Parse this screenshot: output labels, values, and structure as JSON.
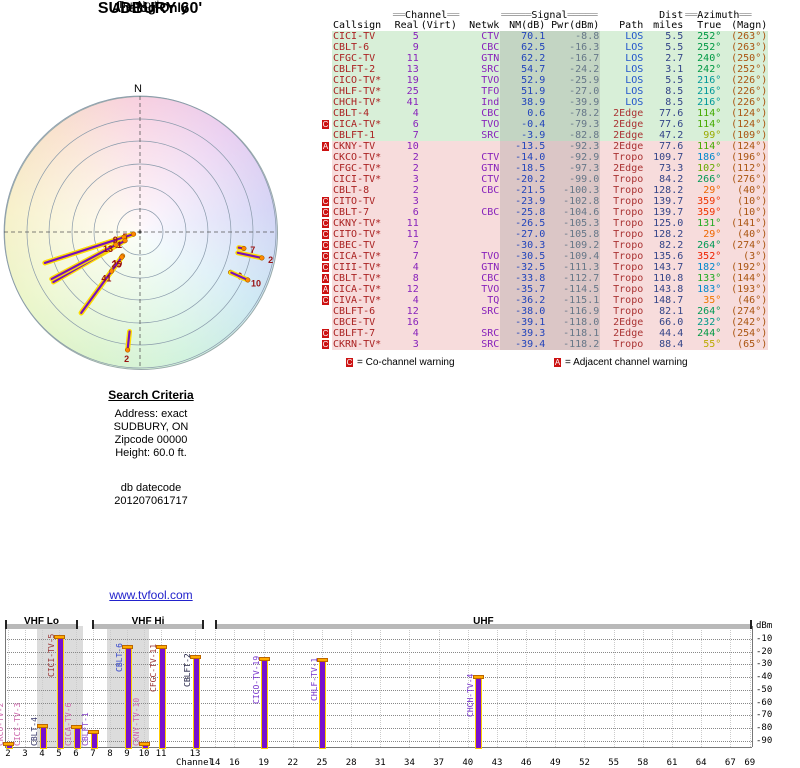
{
  "radar": {
    "title": "SUDBURY 60'",
    "subtitle": "Analog Only",
    "north_label": "TrueNorth",
    "compass_label": "N"
  },
  "table": {
    "group_headers": {
      "channel": {
        "pre": "══",
        "label": "Channel",
        "post": "══"
      },
      "signal": {
        "pre": "═════",
        "label": "Signal",
        "post": "═════"
      },
      "dist": {
        "label": "Dist"
      },
      "azimuth": {
        "pre": "══",
        "label": "Azimuth",
        "post": "══"
      }
    },
    "columns": [
      "Callsign",
      "Real",
      "(Virt)",
      "Netwk",
      "NM(dB)",
      "Pwr(dBm)",
      "Path",
      "miles",
      "True",
      "(Magn)"
    ],
    "rows": [
      {
        "warn": "",
        "callsign": "CICI-TV",
        "real": "5",
        "virt": "",
        "netwk": "CTV",
        "nm": "70.1",
        "pwr": "-8.8",
        "path": "LOS",
        "miles": "5.5",
        "az_true": "252°",
        "az_magn": "(263°)",
        "tier": "green",
        "az_color": "#009944"
      },
      {
        "warn": "",
        "callsign": "CBLT-6",
        "real": "9",
        "virt": "",
        "netwk": "CBC",
        "nm": "62.5",
        "pwr": "-16.3",
        "path": "LOS",
        "miles": "5.5",
        "az_true": "252°",
        "az_magn": "(263°)",
        "tier": "green",
        "az_color": "#009944"
      },
      {
        "warn": "",
        "callsign": "CFGC-TV",
        "real": "11",
        "virt": "",
        "netwk": "GTN",
        "nm": "62.2",
        "pwr": "-16.7",
        "path": "LOS",
        "miles": "2.7",
        "az_true": "240°",
        "az_magn": "(250°)",
        "tier": "green",
        "az_color": "#009944"
      },
      {
        "warn": "",
        "callsign": "CBLFT-2",
        "real": "13",
        "virt": "",
        "netwk": "SRC",
        "nm": "54.7",
        "pwr": "-24.2",
        "path": "LOS",
        "miles": "3.1",
        "az_true": "242°",
        "az_magn": "(252°)",
        "tier": "green",
        "az_color": "#009944"
      },
      {
        "warn": "",
        "callsign": "CICO-TV*",
        "real": "19",
        "virt": "",
        "netwk": "TVO",
        "nm": "52.9",
        "pwr": "-25.9",
        "path": "LOS",
        "miles": "5.5",
        "az_true": "216°",
        "az_magn": "(226°)",
        "tier": "green",
        "az_color": "#009999"
      },
      {
        "warn": "",
        "callsign": "CHLF-TV*",
        "real": "25",
        "virt": "",
        "netwk": "TFO",
        "nm": "51.9",
        "pwr": "-27.0",
        "path": "LOS",
        "miles": "8.5",
        "az_true": "216°",
        "az_magn": "(226°)",
        "tier": "green",
        "az_color": "#009999"
      },
      {
        "warn": "",
        "callsign": "CHCH-TV*",
        "real": "41",
        "virt": "",
        "netwk": "Ind",
        "nm": "38.9",
        "pwr": "-39.9",
        "path": "LOS",
        "miles": "8.5",
        "az_true": "216°",
        "az_magn": "(226°)",
        "tier": "green",
        "az_color": "#009999"
      },
      {
        "warn": "",
        "callsign": "CBLT-4",
        "real": "4",
        "virt": "",
        "netwk": "CBC",
        "nm": "0.6",
        "pwr": "-78.2",
        "path": "2Edge",
        "miles": "77.6",
        "az_true": "114°",
        "az_magn": "(124°)",
        "tier": "green",
        "az_color": "#44aa00"
      },
      {
        "warn": "C",
        "callsign": "CICA-TV*",
        "real": "6",
        "virt": "",
        "netwk": "TVO",
        "nm": "-0.4",
        "pwr": "-79.3",
        "path": "2Edge",
        "miles": "77.6",
        "az_true": "114°",
        "az_magn": "(124°)",
        "tier": "green",
        "az_color": "#44aa00"
      },
      {
        "warn": "",
        "callsign": "CBLFT-1",
        "real": "7",
        "virt": "",
        "netwk": "SRC",
        "nm": "-3.9",
        "pwr": "-82.8",
        "path": "2Edge",
        "miles": "47.2",
        "az_true": "99°",
        "az_magn": "(109°)",
        "tier": "green",
        "az_color": "#99aa00"
      },
      {
        "warn": "A",
        "callsign": "CKNY-TV",
        "real": "10",
        "virt": "",
        "netwk": "",
        "nm": "-13.5",
        "pwr": "-92.3",
        "path": "2Edge",
        "miles": "77.6",
        "az_true": "114°",
        "az_magn": "(124°)",
        "tier": "pink",
        "az_color": "#44aa00"
      },
      {
        "warn": "",
        "callsign": "CKCO-TV*",
        "real": "2",
        "virt": "",
        "netwk": "CTV",
        "nm": "-14.0",
        "pwr": "-92.9",
        "path": "Tropo",
        "miles": "109.7",
        "az_true": "186°",
        "az_magn": "(196°)",
        "tier": "pink",
        "az_color": "#0088cc"
      },
      {
        "warn": "",
        "callsign": "CFGC-TV*",
        "real": "2",
        "virt": "",
        "netwk": "GTN",
        "nm": "-18.5",
        "pwr": "-97.3",
        "path": "2Edge",
        "miles": "73.3",
        "az_true": "102°",
        "az_magn": "(112°)",
        "tier": "pink",
        "az_color": "#66aa00"
      },
      {
        "warn": "",
        "callsign": "CICI-TV*",
        "real": "3",
        "virt": "",
        "netwk": "CTV",
        "nm": "-20.2",
        "pwr": "-99.0",
        "path": "Tropo",
        "miles": "84.2",
        "az_true": "266°",
        "az_magn": "(276°)",
        "tier": "pink",
        "az_color": "#009955"
      },
      {
        "warn": "",
        "callsign": "CBLT-8",
        "real": "2",
        "virt": "",
        "netwk": "CBC",
        "nm": "-21.5",
        "pwr": "-100.3",
        "path": "Tropo",
        "miles": "128.2",
        "az_true": "29°",
        "az_magn": "(40°)",
        "tier": "pink",
        "az_color": "#ee6600"
      },
      {
        "warn": "C",
        "callsign": "CITO-TV",
        "real": "3",
        "virt": "",
        "netwk": "",
        "nm": "-23.9",
        "pwr": "-102.8",
        "path": "Tropo",
        "miles": "139.7",
        "az_true": "359°",
        "az_magn": "(10°)",
        "tier": "pink",
        "az_color": "#ee3300"
      },
      {
        "warn": "C",
        "callsign": "CBLT-7",
        "real": "6",
        "virt": "",
        "netwk": "CBC",
        "nm": "-25.8",
        "pwr": "-104.6",
        "path": "Tropo",
        "miles": "139.7",
        "az_true": "359°",
        "az_magn": "(10°)",
        "tier": "pink",
        "az_color": "#ee3300"
      },
      {
        "warn": "C",
        "callsign": "CKNY-TV*",
        "real": "11",
        "virt": "",
        "netwk": "",
        "nm": "-26.5",
        "pwr": "-105.3",
        "path": "Tropo",
        "miles": "125.0",
        "az_true": "131°",
        "az_magn": "(141°)",
        "tier": "pink",
        "az_color": "#22aa22"
      },
      {
        "warn": "C",
        "callsign": "CITO-TV*",
        "real": "11",
        "virt": "",
        "netwk": "",
        "nm": "-27.0",
        "pwr": "-105.8",
        "path": "Tropo",
        "miles": "128.2",
        "az_true": "29°",
        "az_magn": "(40°)",
        "tier": "pink",
        "az_color": "#ee6600"
      },
      {
        "warn": "C",
        "callsign": "CBEC-TV",
        "real": "7",
        "virt": "",
        "netwk": "",
        "nm": "-30.3",
        "pwr": "-109.2",
        "path": "Tropo",
        "miles": "82.2",
        "az_true": "264°",
        "az_magn": "(274°)",
        "tier": "pink",
        "az_color": "#009955"
      },
      {
        "warn": "C",
        "callsign": "CICA-TV*",
        "real": "7",
        "virt": "",
        "netwk": "TVO",
        "nm": "-30.5",
        "pwr": "-109.4",
        "path": "Tropo",
        "miles": "135.6",
        "az_true": "352°",
        "az_magn": "(3°)",
        "tier": "pink",
        "az_color": "#ee2200"
      },
      {
        "warn": "C",
        "callsign": "CIII-TV*",
        "real": "4",
        "virt": "",
        "netwk": "GTN",
        "nm": "-32.5",
        "pwr": "-111.3",
        "path": "Tropo",
        "miles": "143.7",
        "az_true": "182°",
        "az_magn": "(192°)",
        "tier": "pink",
        "az_color": "#0088cc"
      },
      {
        "warn": "A",
        "callsign": "CBLT-TV*",
        "real": "8",
        "virt": "",
        "netwk": "CBC",
        "nm": "-33.8",
        "pwr": "-112.7",
        "path": "Tropo",
        "miles": "110.8",
        "az_true": "133°",
        "az_magn": "(144°)",
        "tier": "pink",
        "az_color": "#22aa22"
      },
      {
        "warn": "A",
        "callsign": "CICA-TV*",
        "real": "12",
        "virt": "",
        "netwk": "TVO",
        "nm": "-35.7",
        "pwr": "-114.5",
        "path": "Tropo",
        "miles": "143.8",
        "az_true": "183°",
        "az_magn": "(193°)",
        "tier": "pink",
        "az_color": "#0088cc"
      },
      {
        "warn": "C",
        "callsign": "CIVA-TV*",
        "real": "4",
        "virt": "",
        "netwk": "TQ",
        "nm": "-36.2",
        "pwr": "-115.1",
        "path": "Tropo",
        "miles": "148.7",
        "az_true": "35°",
        "az_magn": "(46°)",
        "tier": "pink",
        "az_color": "#ee7700"
      },
      {
        "warn": "",
        "callsign": "CBLFT-6",
        "real": "12",
        "virt": "",
        "netwk": "SRC",
        "nm": "-38.0",
        "pwr": "-116.9",
        "path": "Tropo",
        "miles": "82.1",
        "az_true": "264°",
        "az_magn": "(274°)",
        "tier": "pink",
        "az_color": "#009955"
      },
      {
        "warn": "",
        "callsign": "CBCE-TV",
        "real": "16",
        "virt": "",
        "netwk": "",
        "nm": "-39.1",
        "pwr": "-118.0",
        "path": "2Edge",
        "miles": "66.0",
        "az_true": "232°",
        "az_magn": "(242°)",
        "tier": "pink",
        "az_color": "#009988"
      },
      {
        "warn": "C",
        "callsign": "CBLFT-7",
        "real": "4",
        "virt": "",
        "netwk": "SRC",
        "nm": "-39.3",
        "pwr": "-118.1",
        "path": "2Edge",
        "miles": "44.4",
        "az_true": "244°",
        "az_magn": "(254°)",
        "tier": "pink",
        "az_color": "#009944"
      },
      {
        "warn": "C",
        "callsign": "CKRN-TV*",
        "real": "3",
        "virt": "",
        "netwk": "SRC",
        "nm": "-39.4",
        "pwr": "-118.2",
        "path": "Tropo",
        "miles": "88.4",
        "az_true": "55°",
        "az_magn": "(65°)",
        "tier": "pink",
        "az_color": "#bbaa00"
      }
    ]
  },
  "legend": {
    "items": [
      {
        "mark": "C",
        "text": "= Co-channel warning"
      },
      {
        "mark": "A",
        "text": "= Adjacent channel warning"
      }
    ]
  },
  "search": {
    "heading": "Search Criteria",
    "lines": [
      "Address: exact",
      "SUDBURY, ON",
      "Zipcode 00000",
      "Height: 60.0 ft."
    ],
    "footer_lines": [
      "db datecode",
      "201207061717"
    ]
  },
  "link": {
    "text": "www.tvfool.com"
  },
  "chart_data": [
    {
      "type": "scatter",
      "subtype": "polar-radar",
      "title": "SUDBURY 60'",
      "subtitle": "Analog Only",
      "orientation": "TrueNorth",
      "points": [
        {
          "label": "5",
          "azimuth_deg": 252,
          "nm_db": 70.1
        },
        {
          "label": "9",
          "azimuth_deg": 252,
          "nm_db": 62.5
        },
        {
          "label": "11",
          "azimuth_deg": 240,
          "nm_db": 62.2
        },
        {
          "label": "13",
          "azimuth_deg": 242,
          "nm_db": 54.7
        },
        {
          "label": "19",
          "azimuth_deg": 216,
          "nm_db": 52.9
        },
        {
          "label": "25",
          "azimuth_deg": 216,
          "nm_db": 51.9
        },
        {
          "label": "41",
          "azimuth_deg": 216,
          "nm_db": 38.9
        },
        {
          "label": "4",
          "azimuth_deg": 114,
          "nm_db": 0.6
        },
        {
          "label": "6",
          "azimuth_deg": 114,
          "nm_db": -0.4
        },
        {
          "label": "10",
          "azimuth_deg": 114,
          "nm_db": -13.5
        },
        {
          "label": "7",
          "azimuth_deg": 99,
          "nm_db": -3.9
        },
        {
          "label": "2",
          "azimuth_deg": 102,
          "nm_db": -18.5
        },
        {
          "label": "2",
          "azimuth_deg": 186,
          "nm_db": -14.0
        }
      ]
    },
    {
      "type": "bar",
      "ylabel": "dBm",
      "xlabel": "Channel",
      "ylim": [
        -95,
        0
      ],
      "yticks": [
        -10,
        -20,
        -30,
        -40,
        -50,
        -60,
        -70,
        -80,
        -90
      ],
      "bands": [
        {
          "label": "VHF Lo",
          "ch_from": 2,
          "ch_to": 6
        },
        {
          "label": "VHF Hi",
          "ch_from": 7,
          "ch_to": 13
        },
        {
          "label": "UHF",
          "ch_from": 14,
          "ch_to": 69
        }
      ],
      "vhf_ticks": [
        2,
        3,
        4,
        5,
        6,
        7,
        8,
        9,
        10,
        11,
        13
      ],
      "uhf_ticks": [
        14,
        16,
        19,
        22,
        25,
        28,
        31,
        34,
        37,
        40,
        43,
        46,
        49,
        52,
        55,
        58,
        61,
        64,
        67,
        69
      ],
      "shaded_channel_ranges": [
        {
          "ch_from": 3.7,
          "ch_to": 6.4
        },
        {
          "ch_from": 7.8,
          "ch_to": 10.3
        }
      ],
      "bars": [
        {
          "channel": 2,
          "label": "CKCO-TV-2",
          "pwr_dbm": -92.9,
          "color": "#cc66aa"
        },
        {
          "channel": 3,
          "label": "CICI-TV-3",
          "pwr_dbm": -99.0,
          "color": "#cc66aa"
        },
        {
          "channel": 4,
          "label": "CBLT-4",
          "pwr_dbm": -78.2,
          "color": "#333366"
        },
        {
          "channel": 5,
          "label": "CICI-TV-5",
          "pwr_dbm": -8.8,
          "color": "#993333"
        },
        {
          "channel": 6,
          "label": "CICA-TV-6",
          "pwr_dbm": -79.3,
          "color": "#cc66aa"
        },
        {
          "channel": 7,
          "label": "CBLFT-1",
          "pwr_dbm": -82.8,
          "color": "#8844cc"
        },
        {
          "channel": 9,
          "label": "CBLT-6",
          "pwr_dbm": -16.3,
          "color": "#3344cc"
        },
        {
          "channel": 10,
          "label": "CKNY-TV-10",
          "pwr_dbm": -92.3,
          "color": "#cc66aa"
        },
        {
          "channel": 11,
          "label": "CFGC-TV-11",
          "pwr_dbm": -16.7,
          "color": "#993333"
        },
        {
          "channel": 13,
          "label": "CBLFT-2",
          "pwr_dbm": -24.2,
          "color": "#222244"
        },
        {
          "channel": 19,
          "label": "CICO-TV-19",
          "pwr_dbm": -25.9,
          "color": "#7733cc"
        },
        {
          "channel": 25,
          "label": "CHLF-TV-1",
          "pwr_dbm": -27.0,
          "color": "#7733cc"
        },
        {
          "channel": 41,
          "label": "CHCH-TV-4",
          "pwr_dbm": -39.9,
          "color": "#7733cc"
        }
      ]
    }
  ]
}
